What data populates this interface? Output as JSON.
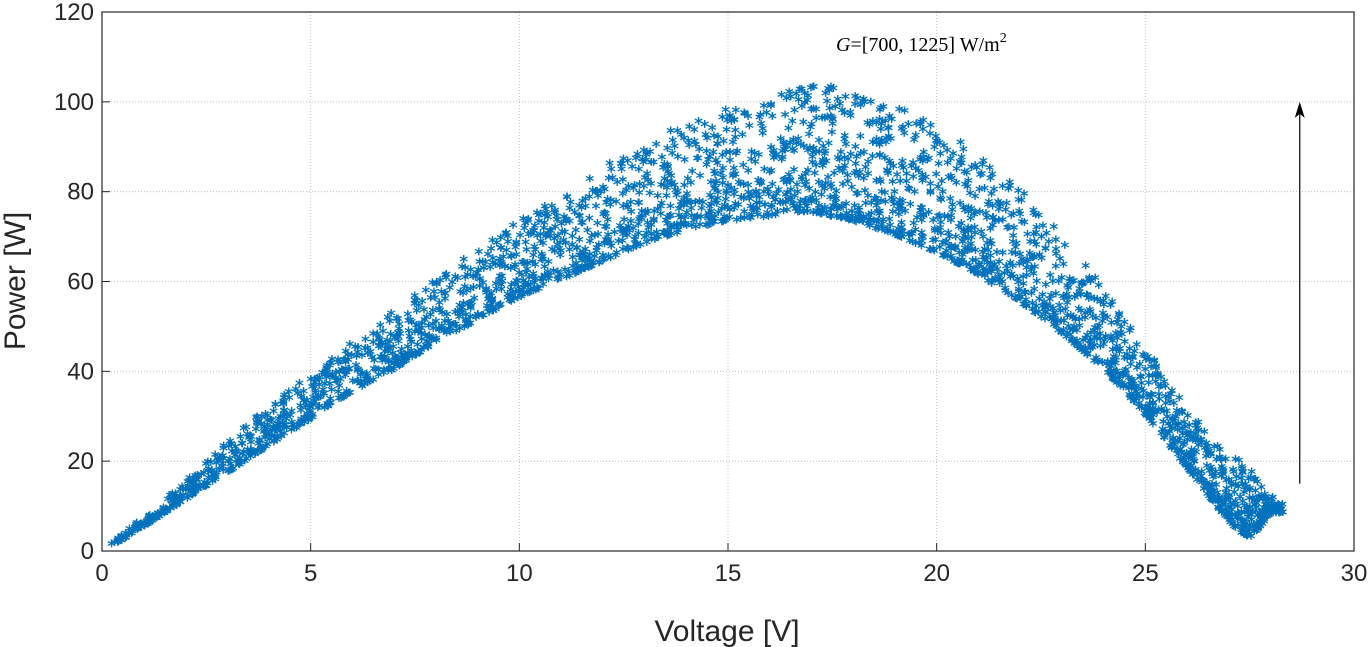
{
  "chart_data": {
    "type": "scatter",
    "title": "",
    "xlabel": "Voltage [V]",
    "ylabel": "Power [W]",
    "xlim": [
      0,
      30
    ],
    "ylim": [
      0,
      120
    ],
    "xticks": [
      0,
      5,
      10,
      15,
      20,
      25,
      30
    ],
    "yticks": [
      0,
      20,
      40,
      60,
      80,
      100,
      120
    ],
    "grid": true,
    "marker": "asterisk",
    "marker_glyph": "*",
    "series_color": "#0072bd",
    "annotation": {
      "prefix": "G",
      "text": "=[700, 1225] W/m",
      "superscript": "2"
    },
    "arrow": {
      "x": 28.7,
      "y_from": 15,
      "y_to": 100,
      "direction": "up"
    },
    "series": [
      {
        "points_count": 2800,
        "x": [
          0.2,
          0.5,
          1.0,
          1.5,
          2.0,
          2.5,
          3.0,
          4.0,
          5.0,
          6.0,
          7.0,
          8.0,
          9.0,
          10.0,
          11.0,
          12.0,
          13.0,
          14.0,
          15.0,
          16.0,
          16.5,
          17.0,
          17.5,
          18.0,
          19.0,
          20.0,
          21.0,
          22.0,
          23.0,
          24.0,
          25.0,
          25.5,
          26.0,
          26.5,
          27.0,
          27.5,
          28.0,
          28.3
        ],
        "y_low": [
          0.5,
          2,
          5,
          8,
          11,
          14,
          17,
          23,
          29,
          35,
          40,
          46,
          51,
          56,
          60,
          64,
          68,
          71,
          73,
          74,
          75,
          75,
          74,
          73,
          70,
          66,
          61,
          55,
          48,
          40,
          30,
          24,
          18,
          12,
          6,
          2,
          8,
          8
        ],
        "y_high": [
          2,
          4,
          7,
          11,
          15,
          19,
          24,
          32,
          39,
          46,
          53,
          60,
          67,
          73,
          79,
          85,
          90,
          95,
          98,
          101,
          102,
          103,
          103,
          102,
          99,
          94,
          88,
          80,
          70,
          58,
          45,
          38,
          31,
          26,
          22,
          18,
          12,
          10
        ]
      }
    ]
  }
}
